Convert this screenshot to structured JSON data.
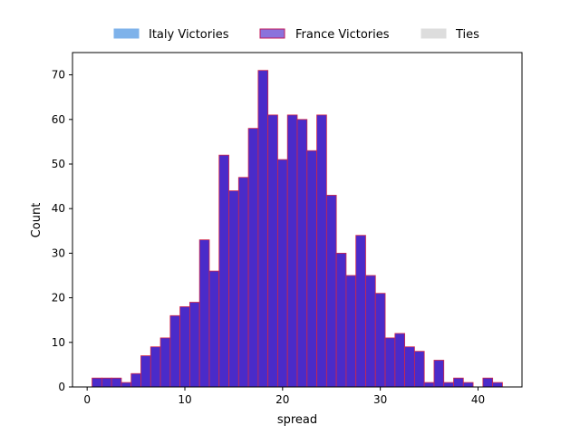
{
  "chart_data": {
    "type": "bar",
    "subtype": "histogram",
    "xlabel": "spread",
    "ylabel": "Count",
    "xlim": [
      -1.5,
      44.5
    ],
    "ylim": [
      0,
      75
    ],
    "xticks": [
      0,
      10,
      20,
      30,
      40
    ],
    "yticks": [
      0,
      10,
      20,
      30,
      40,
      50,
      60,
      70
    ],
    "grid": false,
    "legend": {
      "placement": "top-center, above plot",
      "entries": [
        {
          "label": "Italy Victories",
          "color": "#7eb2ea",
          "edge": "#7eb2ea"
        },
        {
          "label": "France Victories",
          "color": "#8a72dc",
          "edge": "#c2185b"
        },
        {
          "label": "Ties",
          "color": "#dddddd",
          "edge": "#dddddd"
        }
      ]
    },
    "bar_fill": "#4a2bc9",
    "bar_edge": "#d0264a",
    "bins": {
      "start": 0.5,
      "width": 1.0
    },
    "series": [
      {
        "name": "France Victories",
        "values": [
          2,
          2,
          2,
          1,
          3,
          7,
          9,
          11,
          16,
          18,
          19,
          33,
          26,
          52,
          44,
          47,
          58,
          71,
          61,
          51,
          61,
          60,
          53,
          61,
          43,
          30,
          25,
          34,
          25,
          21,
          11,
          12,
          9,
          8,
          1,
          6,
          1,
          2,
          1,
          0,
          2,
          1
        ]
      }
    ]
  }
}
